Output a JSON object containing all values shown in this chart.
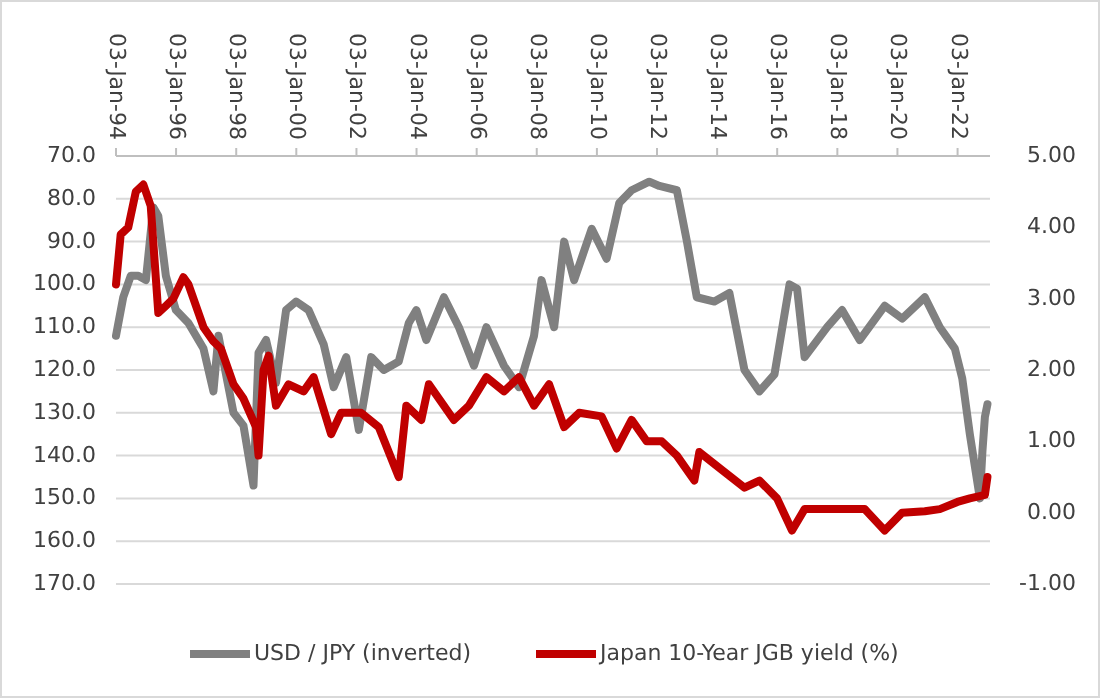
{
  "chart_data": {
    "type": "line",
    "xlim": [
      "1994-01-03",
      "2023-02-01"
    ],
    "xticks": [
      {
        "value": "1994-01-03",
        "label": "03-Jan-94"
      },
      {
        "value": "1996-01-03",
        "label": "03-Jan-96"
      },
      {
        "value": "1998-01-03",
        "label": "03-Jan-98"
      },
      {
        "value": "2000-01-03",
        "label": "03-Jan-00"
      },
      {
        "value": "2002-01-03",
        "label": "03-Jan-02"
      },
      {
        "value": "2004-01-03",
        "label": "03-Jan-04"
      },
      {
        "value": "2006-01-03",
        "label": "03-Jan-06"
      },
      {
        "value": "2008-01-03",
        "label": "03-Jan-08"
      },
      {
        "value": "2010-01-03",
        "label": "03-Jan-10"
      },
      {
        "value": "2012-01-03",
        "label": "03-Jan-12"
      },
      {
        "value": "2014-01-03",
        "label": "03-Jan-14"
      },
      {
        "value": "2016-01-03",
        "label": "03-Jan-16"
      },
      {
        "value": "2018-01-03",
        "label": "03-Jan-18"
      },
      {
        "value": "2020-01-03",
        "label": "03-Jan-20"
      },
      {
        "value": "2022-01-03",
        "label": "03-Jan-22"
      }
    ],
    "ylim": [
      170,
      70
    ],
    "yticks": [
      {
        "value": 70,
        "label": "70.0"
      },
      {
        "value": 80,
        "label": "80.0"
      },
      {
        "value": 90,
        "label": "90.0"
      },
      {
        "value": 100,
        "label": "100.0"
      },
      {
        "value": 110,
        "label": "110.0"
      },
      {
        "value": 120,
        "label": "120.0"
      },
      {
        "value": 130,
        "label": "130.0"
      },
      {
        "value": 140,
        "label": "140.0"
      },
      {
        "value": 150,
        "label": "150.0"
      },
      {
        "value": 160,
        "label": "160.0"
      },
      {
        "value": 170,
        "label": "170.0"
      }
    ],
    "y2lim": [
      -1,
      5
    ],
    "y2ticks": [
      {
        "value": 5,
        "label": "5.00"
      },
      {
        "value": 4,
        "label": "4.00"
      },
      {
        "value": 3,
        "label": "3.00"
      },
      {
        "value": 2,
        "label": "2.00"
      },
      {
        "value": 1,
        "label": "1.00"
      },
      {
        "value": 0,
        "label": "0.00"
      },
      {
        "value": -1,
        "label": "-1.00"
      }
    ],
    "grid": "y",
    "legend": "bottom",
    "line_style": "solid",
    "marker": "none",
    "series": [
      {
        "name": "USD / JPY (inverted)",
        "color": "#808080",
        "x": [
          "1994-01-03",
          "1994-04",
          "1994-07",
          "1994-10",
          "1995-01",
          "1995-04",
          "1995-06",
          "1995-09",
          "1996-01",
          "1996-06",
          "1996-12",
          "1997-04",
          "1997-06",
          "1997-12",
          "1998-04",
          "1998-08",
          "1998-10",
          "1999-01",
          "1999-05",
          "1999-09",
          "2000-01",
          "2000-06",
          "2000-12",
          "2001-04",
          "2001-09",
          "2002-02",
          "2002-07",
          "2002-12",
          "2003-06",
          "2003-10",
          "2004-01",
          "2004-05",
          "2004-12",
          "2005-06",
          "2005-12",
          "2006-05",
          "2006-12",
          "2007-06",
          "2007-12",
          "2008-03",
          "2008-08",
          "2008-12",
          "2009-04",
          "2009-11",
          "2010-05",
          "2010-10",
          "2011-03",
          "2011-10",
          "2012-02",
          "2012-09",
          "2013-01",
          "2013-05",
          "2013-12",
          "2014-06",
          "2014-12",
          "2015-06",
          "2015-12",
          "2016-06",
          "2016-09",
          "2016-12",
          "2017-09",
          "2018-03",
          "2018-10",
          "2019-08",
          "2020-03",
          "2020-12",
          "2021-06",
          "2021-12",
          "2022-03",
          "2022-06",
          "2022-10",
          "2022-11",
          "2022-12",
          "2023-01"
        ],
        "values": [
          112,
          103,
          98,
          98,
          99,
          82,
          84,
          98,
          106,
          109,
          115,
          125,
          112,
          130,
          133,
          147,
          116,
          113,
          123,
          106,
          104,
          106,
          114,
          124,
          117,
          134,
          117,
          120,
          118,
          109,
          106,
          113,
          103,
          110,
          119,
          110,
          119,
          124,
          112,
          99,
          110,
          90,
          99,
          87,
          94,
          81,
          78,
          76,
          77,
          78,
          90,
          103,
          104,
          102,
          120,
          125,
          121,
          100,
          101,
          117,
          110,
          106,
          113,
          105,
          108,
          103,
          110,
          115,
          122,
          135,
          150,
          139,
          131,
          128
        ]
      },
      {
        "name": "Japan 10-Year JGB yield (%)",
        "color": "#c00000",
        "axis": "y2",
        "x": [
          "1994-01-03",
          "1994-03",
          "1994-06",
          "1994-09",
          "1994-12",
          "1995-03",
          "1995-06",
          "1995-09",
          "1995-12",
          "1996-04",
          "1996-06",
          "1996-12",
          "1997-04",
          "1997-07",
          "1997-12",
          "1998-04",
          "1998-09",
          "1998-10",
          "1998-12",
          "1999-02",
          "1999-05",
          "1999-10",
          "2000-04",
          "2000-08",
          "2001-03",
          "2001-07",
          "2002-03",
          "2002-10",
          "2003-06",
          "2003-09",
          "2004-03",
          "2004-06",
          "2005-04",
          "2005-10",
          "2006-05",
          "2006-12",
          "2007-06",
          "2007-12",
          "2008-06",
          "2008-12",
          "2009-06",
          "2010-03",
          "2010-09",
          "2011-03",
          "2011-09",
          "2012-03",
          "2012-09",
          "2013-04",
          "2013-06",
          "2014-03",
          "2014-12",
          "2015-06",
          "2016-01",
          "2016-07",
          "2016-12",
          "2017-06",
          "2018-06",
          "2018-12",
          "2019-08",
          "2020-03",
          "2020-12",
          "2021-06",
          "2022-01",
          "2022-06",
          "2022-12",
          "2023-01"
        ],
        "values": [
          3.2,
          3.9,
          4.0,
          4.5,
          4.6,
          4.3,
          2.8,
          2.9,
          3.0,
          3.3,
          3.2,
          2.6,
          2.4,
          2.3,
          1.8,
          1.6,
          1.2,
          0.8,
          2.0,
          2.2,
          1.5,
          1.8,
          1.7,
          1.9,
          1.1,
          1.4,
          1.4,
          1.2,
          0.5,
          1.5,
          1.3,
          1.8,
          1.3,
          1.5,
          1.9,
          1.7,
          1.9,
          1.5,
          1.8,
          1.2,
          1.4,
          1.35,
          0.9,
          1.3,
          1.0,
          1.0,
          0.8,
          0.45,
          0.85,
          0.6,
          0.35,
          0.45,
          0.2,
          -0.25,
          0.05,
          0.05,
          0.05,
          0.05,
          -0.25,
          0.0,
          0.02,
          0.05,
          0.15,
          0.2,
          0.25,
          0.5
        ]
      }
    ]
  }
}
